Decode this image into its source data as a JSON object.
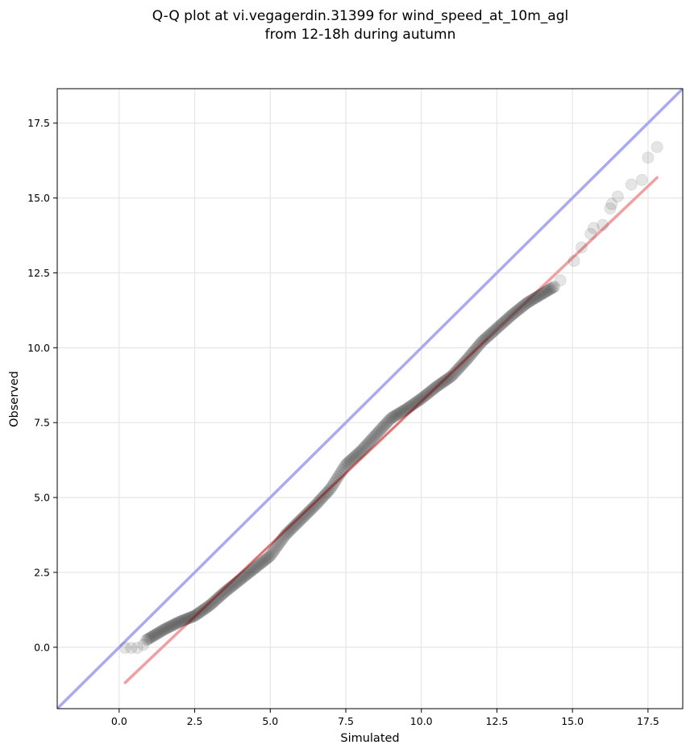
{
  "chart_data": {
    "type": "scatter",
    "title": [
      "Q-Q plot at vi.vegagerdin.31399 for wind_speed_at_10m_agl",
      "from 12-18h during autumn"
    ],
    "xlabel": "Simulated",
    "ylabel": "Observed",
    "xlim": [
      -2.05,
      18.65
    ],
    "ylim": [
      -2.05,
      18.65
    ],
    "x_ticks": [
      "0.0",
      "2.5",
      "5.0",
      "7.5",
      "10.0",
      "12.5",
      "15.0",
      "17.5"
    ],
    "y_ticks": [
      "0.0",
      "2.5",
      "5.0",
      "7.5",
      "10.0",
      "12.5",
      "15.0",
      "17.5"
    ],
    "grid": true,
    "colors": {
      "points": "#333333",
      "identity_line": "#aaaaf0",
      "fit_line": "#f0a0a0",
      "fit_overlay": "#a01010",
      "grid": "#e6e6e6"
    },
    "identity_line": {
      "x": [
        -2.05,
        18.65
      ],
      "y": [
        -2.05,
        18.65
      ]
    },
    "fit_line": {
      "x": [
        0.2,
        17.8
      ],
      "y": [
        -1.18,
        15.68
      ]
    },
    "quantile_curve": [
      [
        0.0,
        0.0
      ],
      [
        0.5,
        0.0
      ],
      [
        1.0,
        0.3
      ],
      [
        1.5,
        0.6
      ],
      [
        2.0,
        0.85
      ],
      [
        2.5,
        1.05
      ],
      [
        3.0,
        1.4
      ],
      [
        3.5,
        1.85
      ],
      [
        4.0,
        2.25
      ],
      [
        4.5,
        2.65
      ],
      [
        5.0,
        3.05
      ],
      [
        5.5,
        3.75
      ],
      [
        6.0,
        4.25
      ],
      [
        6.5,
        4.75
      ],
      [
        7.0,
        5.3
      ],
      [
        7.5,
        6.1
      ],
      [
        8.0,
        6.55
      ],
      [
        8.5,
        7.1
      ],
      [
        9.0,
        7.65
      ],
      [
        9.5,
        7.95
      ],
      [
        10.0,
        8.3
      ],
      [
        10.5,
        8.7
      ],
      [
        11.0,
        9.05
      ],
      [
        11.5,
        9.6
      ],
      [
        12.0,
        10.2
      ],
      [
        12.5,
        10.65
      ],
      [
        13.0,
        11.1
      ],
      [
        13.5,
        11.5
      ],
      [
        14.0,
        11.8
      ],
      [
        14.5,
        12.1
      ],
      [
        15.0,
        12.9
      ],
      [
        15.5,
        13.55
      ],
      [
        16.0,
        14.1
      ],
      [
        16.5,
        14.7
      ],
      [
        17.0,
        15.45
      ],
      [
        17.5,
        16.2
      ],
      [
        17.8,
        16.7
      ]
    ],
    "tail_points": [
      [
        0.2,
        -0.02
      ],
      [
        0.4,
        -0.02
      ],
      [
        0.6,
        -0.02
      ],
      [
        0.8,
        0.08
      ],
      [
        14.6,
        12.25
      ],
      [
        15.05,
        12.9
      ],
      [
        15.3,
        13.35
      ],
      [
        15.6,
        13.8
      ],
      [
        15.7,
        14.0
      ],
      [
        16.0,
        14.1
      ],
      [
        16.25,
        14.65
      ],
      [
        16.3,
        14.8
      ],
      [
        16.5,
        15.05
      ],
      [
        16.95,
        15.45
      ],
      [
        17.3,
        15.6
      ],
      [
        17.5,
        16.35
      ],
      [
        17.8,
        16.7
      ]
    ]
  }
}
